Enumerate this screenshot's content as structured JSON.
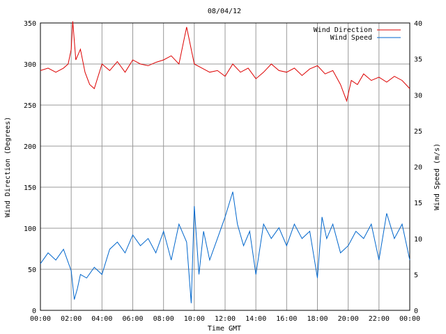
{
  "chart_data": {
    "type": "line",
    "title": "08/04/12",
    "xlabel": "Time GMT",
    "ylabel_left": "Wind Direction (Degrees)",
    "ylabel_right": "Wind Speed (m/s)",
    "x_ticks": [
      "00:00",
      "02:00",
      "04:00",
      "06:00",
      "08:00",
      "10:00",
      "12:00",
      "14:00",
      "16:00",
      "18:00",
      "20:00",
      "22:00",
      "00:00"
    ],
    "xlim_hours": [
      0,
      24
    ],
    "ylim_left": [
      0,
      350
    ],
    "ylim_right": [
      0,
      40
    ],
    "y_ticks_left": [
      0,
      50,
      100,
      150,
      200,
      250,
      300,
      350
    ],
    "y_ticks_right": [
      0,
      5,
      10,
      15,
      20,
      25,
      30,
      35,
      40
    ],
    "grid": true,
    "legend_position": "top-right",
    "series": [
      {
        "name": "Wind Direction",
        "axis": "left",
        "color": "#dd0000",
        "x_hours": [
          0,
          0.5,
          1,
          1.5,
          1.8,
          2,
          2.1,
          2.3,
          2.6,
          2.9,
          3.2,
          3.5,
          4,
          4.5,
          5,
          5.5,
          6,
          6.5,
          7,
          7.5,
          8,
          8.5,
          9,
          9.5,
          10,
          10.5,
          11,
          11.5,
          12,
          12.5,
          13,
          13.5,
          14,
          14.5,
          15,
          15.5,
          16,
          16.5,
          17,
          17.5,
          18,
          18.5,
          19,
          19.5,
          19.9,
          20.2,
          20.6,
          21,
          21.5,
          22,
          22.5,
          23,
          23.5,
          24
        ],
        "values": [
          292,
          295,
          290,
          295,
          300,
          318,
          352,
          305,
          318,
          290,
          275,
          270,
          300,
          292,
          303,
          290,
          305,
          300,
          298,
          302,
          305,
          310,
          300,
          345,
          300,
          295,
          290,
          292,
          285,
          300,
          290,
          295,
          282,
          290,
          300,
          292,
          290,
          295,
          286,
          294,
          298,
          288,
          292,
          275,
          255,
          280,
          275,
          288,
          280,
          284,
          278,
          285,
          280,
          270
        ]
      },
      {
        "name": "Wind Speed",
        "axis": "right",
        "color": "#0066cc",
        "x_hours": [
          0,
          0.5,
          1,
          1.5,
          2,
          2.2,
          2.4,
          2.6,
          3,
          3.5,
          4,
          4.5,
          5,
          5.5,
          6,
          6.5,
          7,
          7.5,
          8,
          8.5,
          9,
          9.5,
          9.8,
          10,
          10.3,
          10.6,
          11,
          11.5,
          12,
          12.5,
          12.8,
          13.2,
          13.6,
          14,
          14.5,
          15,
          15.5,
          16,
          16.5,
          17,
          17.5,
          18,
          18.3,
          18.6,
          19,
          19.5,
          20,
          20.5,
          21,
          21.5,
          22,
          22.5,
          23,
          23.5,
          24
        ],
        "values": [
          6.5,
          8,
          7,
          8.5,
          5.5,
          1.5,
          3,
          5,
          4.5,
          6,
          5,
          8.5,
          9.5,
          8,
          10.5,
          9,
          10,
          8,
          11,
          7,
          12,
          9.5,
          1,
          14.5,
          5,
          11,
          7,
          10,
          13,
          16.5,
          12,
          9,
          11,
          5,
          12,
          10,
          11.5,
          9,
          12,
          10,
          11,
          4.5,
          13,
          10,
          12,
          8,
          9,
          11,
          10,
          12,
          7,
          13.5,
          10,
          12,
          7
        ]
      }
    ]
  }
}
